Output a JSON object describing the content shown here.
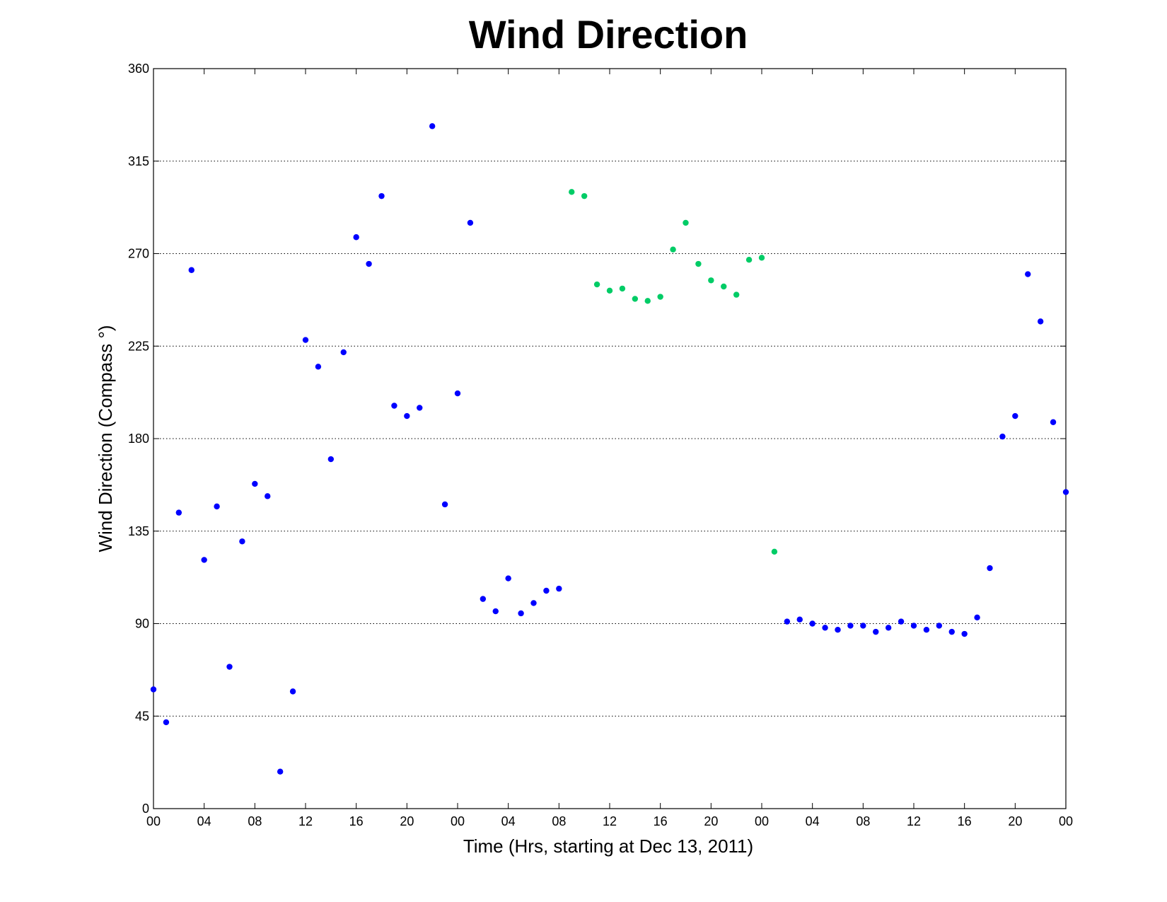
{
  "chart_data": {
    "type": "scatter",
    "title": "Wind Direction",
    "xlabel": "Time (Hrs, starting at Dec 13, 2011)",
    "ylabel": "Wind Direction (Compass  °)",
    "ylim": [
      0,
      360
    ],
    "xlim": [
      0,
      72
    ],
    "yticks": [
      0,
      45,
      90,
      135,
      180,
      225,
      270,
      315,
      360
    ],
    "xticks": [
      0,
      4,
      8,
      12,
      16,
      20,
      24,
      28,
      32,
      36,
      40,
      44,
      48,
      52,
      56,
      60,
      64,
      68,
      72
    ],
    "xtick_labels": [
      "00",
      "04",
      "08",
      "12",
      "16",
      "20",
      "00",
      "04",
      "08",
      "12",
      "16",
      "20",
      "00",
      "04",
      "08",
      "12",
      "16",
      "20",
      "00"
    ],
    "grid": "horizontal",
    "colors": {
      "blue": "#0000ff",
      "green": "#00cc66"
    },
    "series": [
      {
        "color": "blue",
        "x": [
          0,
          1,
          2,
          3,
          4,
          5,
          6,
          7,
          8,
          9,
          10,
          11,
          12,
          13,
          14,
          15,
          16,
          17,
          18,
          19,
          20,
          21,
          22,
          23,
          24,
          25,
          26,
          27,
          28,
          29,
          30,
          31,
          32,
          50,
          51,
          52,
          53,
          54,
          55,
          56,
          57,
          58,
          59,
          60,
          61,
          62,
          63,
          64,
          65,
          66,
          67,
          68,
          69,
          70,
          71,
          72
        ],
        "y": [
          58,
          42,
          144,
          262,
          121,
          147,
          69,
          130,
          158,
          152,
          18,
          57,
          228,
          215,
          170,
          222,
          278,
          265,
          298,
          196,
          191,
          195,
          332,
          148,
          202,
          285,
          102,
          96,
          112,
          95,
          100,
          106,
          107,
          91,
          92,
          90,
          88,
          87,
          89,
          89,
          86,
          88,
          91,
          89,
          87,
          89,
          86,
          85,
          93,
          117,
          181,
          191,
          260,
          237,
          188,
          154
        ]
      },
      {
        "color": "green",
        "x": [
          33,
          34,
          35,
          36,
          37,
          38,
          39,
          40,
          41,
          42,
          43,
          44,
          45,
          46,
          47,
          48,
          49
        ],
        "y": [
          300,
          298,
          255,
          252,
          253,
          248,
          247,
          249,
          272,
          285,
          265,
          257,
          254,
          250,
          267,
          268,
          125
        ]
      }
    ]
  }
}
